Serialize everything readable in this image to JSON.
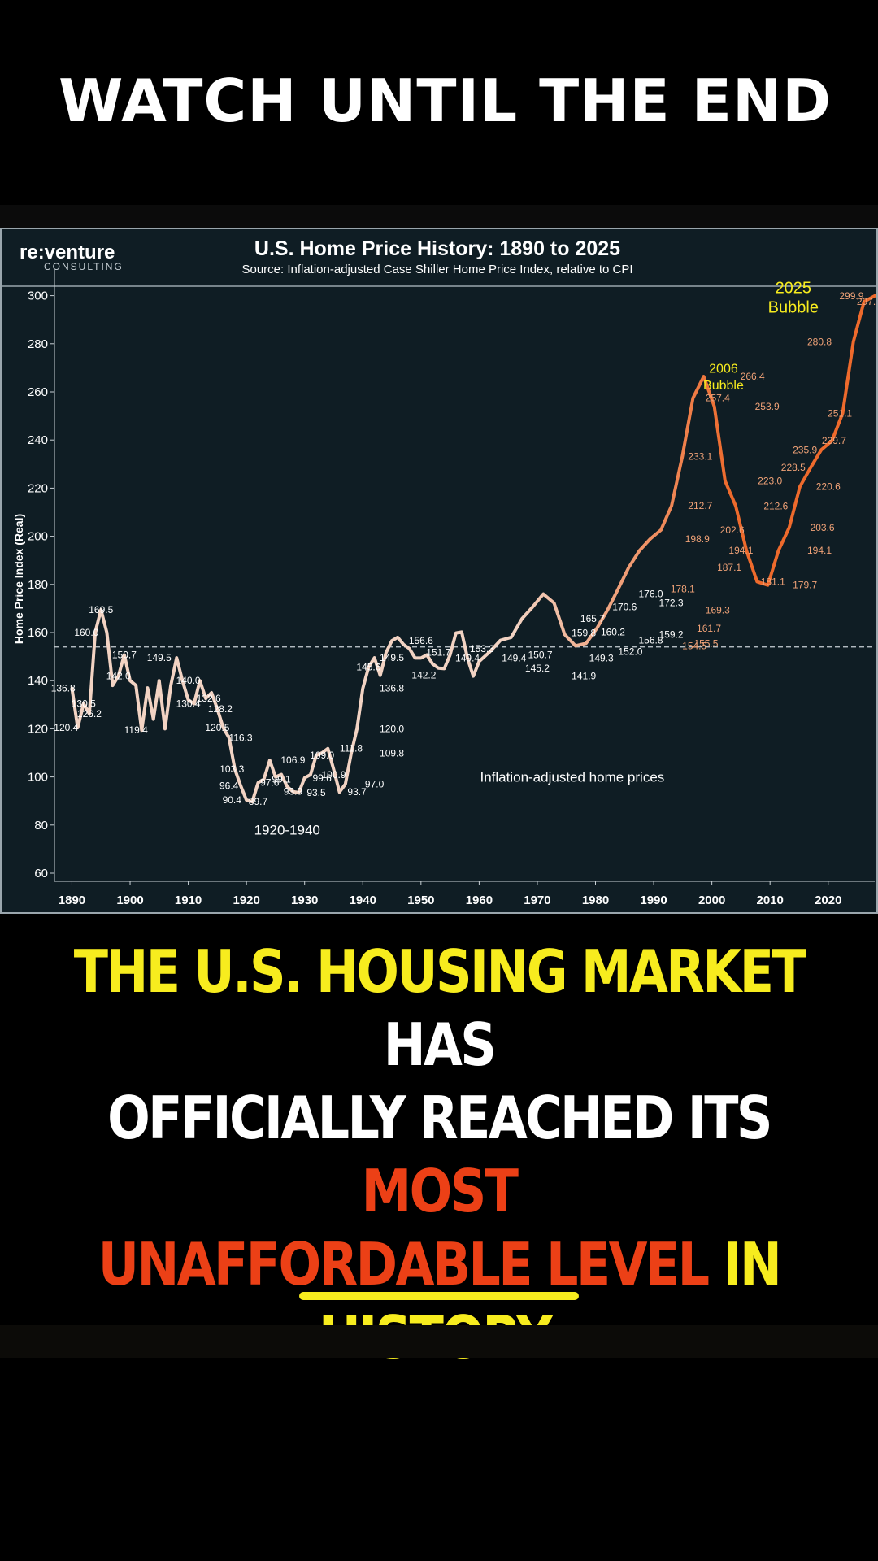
{
  "overlay": {
    "top_text": "WATCH UNTIL THE END",
    "caption": [
      {
        "text": "THE U.S. HOUSING MARKET",
        "color": "y"
      },
      {
        "text": " HAS",
        "color": "w"
      },
      {
        "text": "OFFICIALLY REACHED ITS ",
        "color": "w",
        "br": true
      },
      {
        "text": "MOST",
        "color": "r"
      },
      {
        "text": "UNAFFORDABLE LEVEL",
        "color": "r",
        "br": true
      },
      {
        "text": " IN",
        "color": "y"
      },
      {
        "text": "HISTORY.",
        "color": "y",
        "br": true
      }
    ]
  },
  "brand": {
    "name": "re:venture",
    "sub": "CONSULTING"
  },
  "colors": {
    "panel_bg": "#0f1d24",
    "line_early": "#f2d3c3",
    "line_late": "#ee6a2c",
    "bubble_label": "#f7ec1e",
    "text": "#ffffff",
    "caption_yellow": "#f7ec1e",
    "caption_red": "#ec4016"
  },
  "chart_data": {
    "type": "line",
    "title": "U.S. Home Price History: 1890 to 2025",
    "subtitle": "Source: Inflation-adjusted Case Shiller Home Price Index, relative to CPI",
    "xlabel": "",
    "ylabel": "Home Price Index (Real)",
    "xlim": [
      1887,
      2028
    ],
    "ylim": [
      60,
      310
    ],
    "xticks": [
      1890,
      1900,
      1910,
      1920,
      1930,
      1940,
      1950,
      1960,
      1970,
      1980,
      1990,
      2000,
      2010,
      2020
    ],
    "yticks": [
      60,
      80,
      100,
      120,
      140,
      160,
      180,
      200,
      220,
      240,
      260,
      280,
      300
    ],
    "grid": false,
    "reference_line": {
      "y": 154,
      "style": "dashed"
    },
    "series_name": "Inflation-adjusted home prices",
    "points": [
      [
        1890,
        136.8
      ],
      [
        1891,
        120.4
      ],
      [
        1892,
        130.5
      ],
      [
        1893,
        126.2
      ],
      [
        1894,
        160.0
      ],
      [
        1895,
        169.5
      ],
      [
        1896,
        160
      ],
      [
        1897,
        138
      ],
      [
        1898,
        142.0
      ],
      [
        1899,
        150.7
      ],
      [
        1900,
        140
      ],
      [
        1901,
        138
      ],
      [
        1902,
        119.4
      ],
      [
        1903,
        137
      ],
      [
        1904,
        124
      ],
      [
        1905,
        140
      ],
      [
        1906,
        120
      ],
      [
        1907,
        138
      ],
      [
        1908,
        149.5
      ],
      [
        1909,
        140.0
      ],
      [
        1910,
        132
      ],
      [
        1911,
        130.4
      ],
      [
        1912,
        140
      ],
      [
        1913,
        132.6
      ],
      [
        1914,
        135
      ],
      [
        1915,
        128.2
      ],
      [
        1916,
        120.5
      ],
      [
        1917,
        116.3
      ],
      [
        1918,
        103.3
      ],
      [
        1919,
        96.4
      ],
      [
        1920,
        90.4
      ],
      [
        1921,
        89.7
      ],
      [
        1922,
        97.6
      ],
      [
        1923,
        99.1
      ],
      [
        1924,
        106.9
      ],
      [
        1925,
        100
      ],
      [
        1926,
        101
      ],
      [
        1927,
        96
      ],
      [
        1928,
        93.9
      ],
      [
        1929,
        93.5
      ],
      [
        1930,
        99.6
      ],
      [
        1931,
        100.9
      ],
      [
        1932,
        109.0
      ],
      [
        1933,
        110
      ],
      [
        1934,
        111.8
      ],
      [
        1935,
        103
      ],
      [
        1936,
        93.7
      ],
      [
        1937,
        97.0
      ],
      [
        1938,
        109.8
      ],
      [
        1939,
        120.0
      ],
      [
        1940,
        136.8
      ],
      [
        1941,
        145.6
      ],
      [
        1942,
        149.5
      ],
      [
        1943,
        142.2
      ],
      [
        1944,
        151.7
      ],
      [
        1945,
        156.6
      ],
      [
        1946,
        158
      ],
      [
        1947,
        155
      ],
      [
        1948,
        153.3
      ],
      [
        1949,
        149.4
      ],
      [
        1950,
        149.4
      ],
      [
        1951,
        150.7
      ],
      [
        1952,
        147
      ],
      [
        1953,
        145.2
      ],
      [
        1954,
        145
      ],
      [
        1955,
        150.7
      ],
      [
        1956,
        159.8
      ],
      [
        1957,
        160.2
      ],
      [
        1958,
        149.3
      ],
      [
        1959,
        141.9
      ],
      [
        1960,
        148
      ],
      [
        1961,
        152.0
      ],
      [
        1962,
        156.8
      ],
      [
        1963,
        158
      ],
      [
        1964,
        165.7
      ],
      [
        1965,
        170.6
      ],
      [
        1966,
        176.0
      ],
      [
        1967,
        172.3
      ],
      [
        1968,
        159.2
      ],
      [
        1969,
        154.5
      ],
      [
        1970,
        155.5
      ],
      [
        1971,
        161.7
      ],
      [
        1972,
        169.3
      ],
      [
        1973,
        178.1
      ],
      [
        1974,
        187.1
      ],
      [
        1975,
        194.1
      ],
      [
        1976,
        198.9
      ],
      [
        1977,
        202.6
      ],
      [
        1978,
        212.7
      ],
      [
        1979,
        233.1
      ],
      [
        1980,
        257.4
      ],
      [
        1981,
        266.4
      ],
      [
        1982,
        253.9
      ],
      [
        1983,
        223.0
      ],
      [
        1984,
        212.6
      ],
      [
        1985,
        194.1
      ],
      [
        1986,
        181.1
      ],
      [
        1987,
        179.7
      ],
      [
        1988,
        194.1
      ],
      [
        1989,
        203.6
      ],
      [
        1990,
        220.6
      ],
      [
        1991,
        228.5
      ],
      [
        1992,
        235.9
      ],
      [
        1993,
        239.7
      ],
      [
        1994,
        251.1
      ],
      [
        1995,
        280.8
      ],
      [
        1996,
        297.5
      ],
      [
        1997,
        299.9
      ]
    ],
    "points_note": "x-axis spacing in source chart is compressed after 1960; x values above are approximate positions",
    "annotations": [
      {
        "text": "169.5",
        "x": 1895,
        "y": 169.5
      },
      {
        "text": "160.0",
        "x": 1892.5,
        "y": 160
      },
      {
        "text": "150.7",
        "x": 1899,
        "y": 150.7
      },
      {
        "text": "149.5",
        "x": 1905,
        "y": 149.5
      },
      {
        "text": "142.0",
        "x": 1898,
        "y": 142
      },
      {
        "text": "140.0",
        "x": 1910,
        "y": 140
      },
      {
        "text": "136.8",
        "x": 1888.5,
        "y": 136.8
      },
      {
        "text": "130.5",
        "x": 1892,
        "y": 130.5
      },
      {
        "text": "132.6",
        "x": 1913.5,
        "y": 132.6
      },
      {
        "text": "130.4",
        "x": 1910,
        "y": 130.4
      },
      {
        "text": "128.2",
        "x": 1915.5,
        "y": 128.2
      },
      {
        "text": "126.2",
        "x": 1893,
        "y": 126.2
      },
      {
        "text": "120.4",
        "x": 1889,
        "y": 120.4
      },
      {
        "text": "119.4",
        "x": 1901,
        "y": 119.4
      },
      {
        "text": "120.5",
        "x": 1915,
        "y": 120.5
      },
      {
        "text": "116.3",
        "x": 1919,
        "y": 116.3
      },
      {
        "text": "103.3",
        "x": 1917.5,
        "y": 103.3
      },
      {
        "text": "96.4",
        "x": 1917,
        "y": 96.4
      },
      {
        "text": "90.4",
        "x": 1917.5,
        "y": 90.4
      },
      {
        "text": "89.7",
        "x": 1922,
        "y": 89.7
      },
      {
        "text": "97.6",
        "x": 1924,
        "y": 97.6
      },
      {
        "text": "99.1",
        "x": 1926,
        "y": 99.1
      },
      {
        "text": "106.9",
        "x": 1928,
        "y": 106.9
      },
      {
        "text": "93.9",
        "x": 1928,
        "y": 93.9
      },
      {
        "text": "93.5",
        "x": 1932,
        "y": 93.5
      },
      {
        "text": "99.6",
        "x": 1933,
        "y": 99.6
      },
      {
        "text": "100.9",
        "x": 1935,
        "y": 100.9
      },
      {
        "text": "109.0",
        "x": 1933,
        "y": 109
      },
      {
        "text": "111.8",
        "x": 1938,
        "y": 111.8
      },
      {
        "text": "93.7",
        "x": 1939,
        "y": 93.7
      },
      {
        "text": "97.0",
        "x": 1942,
        "y": 97.0
      },
      {
        "text": "109.8",
        "x": 1945,
        "y": 109.8
      },
      {
        "text": "120.0",
        "x": 1945,
        "y": 120.0
      },
      {
        "text": "136.8",
        "x": 1945,
        "y": 136.8
      },
      {
        "text": "145.6",
        "x": 1941,
        "y": 145.6
      },
      {
        "text": "149.5",
        "x": 1945,
        "y": 149.5
      },
      {
        "text": "142.2",
        "x": 1950.5,
        "y": 142.2
      },
      {
        "text": "151.7",
        "x": 1953,
        "y": 151.7
      },
      {
        "text": "156.6",
        "x": 1950,
        "y": 156.6
      },
      {
        "text": "149.4",
        "x": 1958,
        "y": 149.4
      },
      {
        "text": "153.3",
        "x": 1960.5,
        "y": 153.3
      },
      {
        "text": "149.4",
        "x": 1966,
        "y": 149.4
      },
      {
        "text": "150.7",
        "x": 1970.5,
        "y": 150.7
      },
      {
        "text": "145.2",
        "x": 1970,
        "y": 145.2
      },
      {
        "text": "141.9",
        "x": 1978,
        "y": 141.9
      },
      {
        "text": "149.3",
        "x": 1981,
        "y": 149.3
      },
      {
        "text": "159.8",
        "x": 1978,
        "y": 159.8
      },
      {
        "text": "160.2",
        "x": 1983,
        "y": 160.2
      },
      {
        "text": "165.7",
        "x": 1979.5,
        "y": 165.7
      },
      {
        "text": "170.6",
        "x": 1985,
        "y": 170.6
      },
      {
        "text": "176.0",
        "x": 1989.5,
        "y": 176
      },
      {
        "text": "152.0",
        "x": 1986,
        "y": 152
      },
      {
        "text": "156.8",
        "x": 1989.5,
        "y": 156.8
      },
      {
        "text": "159.2",
        "x": 1993,
        "y": 159.2
      },
      {
        "text": "172.3",
        "x": 1993,
        "y": 172.3
      },
      {
        "text": "178.1",
        "x": 1995,
        "y": 178.1
      },
      {
        "text": "154.5",
        "x": 1997,
        "y": 154.5
      },
      {
        "text": "155.5",
        "x": 1999,
        "y": 155.5
      },
      {
        "text": "161.7",
        "x": 1999.5,
        "y": 161.7
      },
      {
        "text": "169.3",
        "x": 2001,
        "y": 169.3
      },
      {
        "text": "187.1",
        "x": 2003,
        "y": 187.1
      },
      {
        "text": "194.1",
        "x": 2005,
        "y": 194.1
      },
      {
        "text": "198.9",
        "x": 1997.5,
        "y": 198.9
      },
      {
        "text": "202.6",
        "x": 2003.5,
        "y": 202.6
      },
      {
        "text": "212.7",
        "x": 1998,
        "y": 212.7
      },
      {
        "text": "233.1",
        "x": 1998,
        "y": 233.1
      },
      {
        "text": "257.4",
        "x": 2001,
        "y": 257.4
      },
      {
        "text": "266.4",
        "x": 2007,
        "y": 266.4
      },
      {
        "text": "253.9",
        "x": 2009.5,
        "y": 253.9
      },
      {
        "text": "223.0",
        "x": 2010,
        "y": 223.0
      },
      {
        "text": "212.6",
        "x": 2011,
        "y": 212.6
      },
      {
        "text": "228.5",
        "x": 2014,
        "y": 228.5
      },
      {
        "text": "235.9",
        "x": 2016,
        "y": 235.9
      },
      {
        "text": "239.7",
        "x": 2021,
        "y": 239.7
      },
      {
        "text": "220.6",
        "x": 2020,
        "y": 220.6
      },
      {
        "text": "203.6",
        "x": 2019,
        "y": 203.6
      },
      {
        "text": "194.1",
        "x": 2018.5,
        "y": 194.1
      },
      {
        "text": "181.1",
        "x": 2010.5,
        "y": 181.1
      },
      {
        "text": "179.7",
        "x": 2016,
        "y": 179.7
      },
      {
        "text": "251.1",
        "x": 2022,
        "y": 251.1
      },
      {
        "text": "280.8",
        "x": 2018.5,
        "y": 280.8
      },
      {
        "text": "299.9",
        "x": 2024,
        "y": 299.9
      },
      {
        "text": "297.5",
        "x": 2027,
        "y": 297.5
      }
    ],
    "labels": [
      {
        "text": "2006",
        "x": 2002,
        "y": 268
      },
      {
        "text": "Bubble",
        "x": 2002,
        "y": 261
      },
      {
        "text": "2025",
        "x": 2014,
        "y": 301
      },
      {
        "text": "Bubble",
        "x": 2014,
        "y": 293
      },
      {
        "text": "1920-1940",
        "x": 1927,
        "y": 76
      },
      {
        "text": "Inflation-adjusted home prices",
        "x": 1976,
        "y": 98
      }
    ]
  }
}
